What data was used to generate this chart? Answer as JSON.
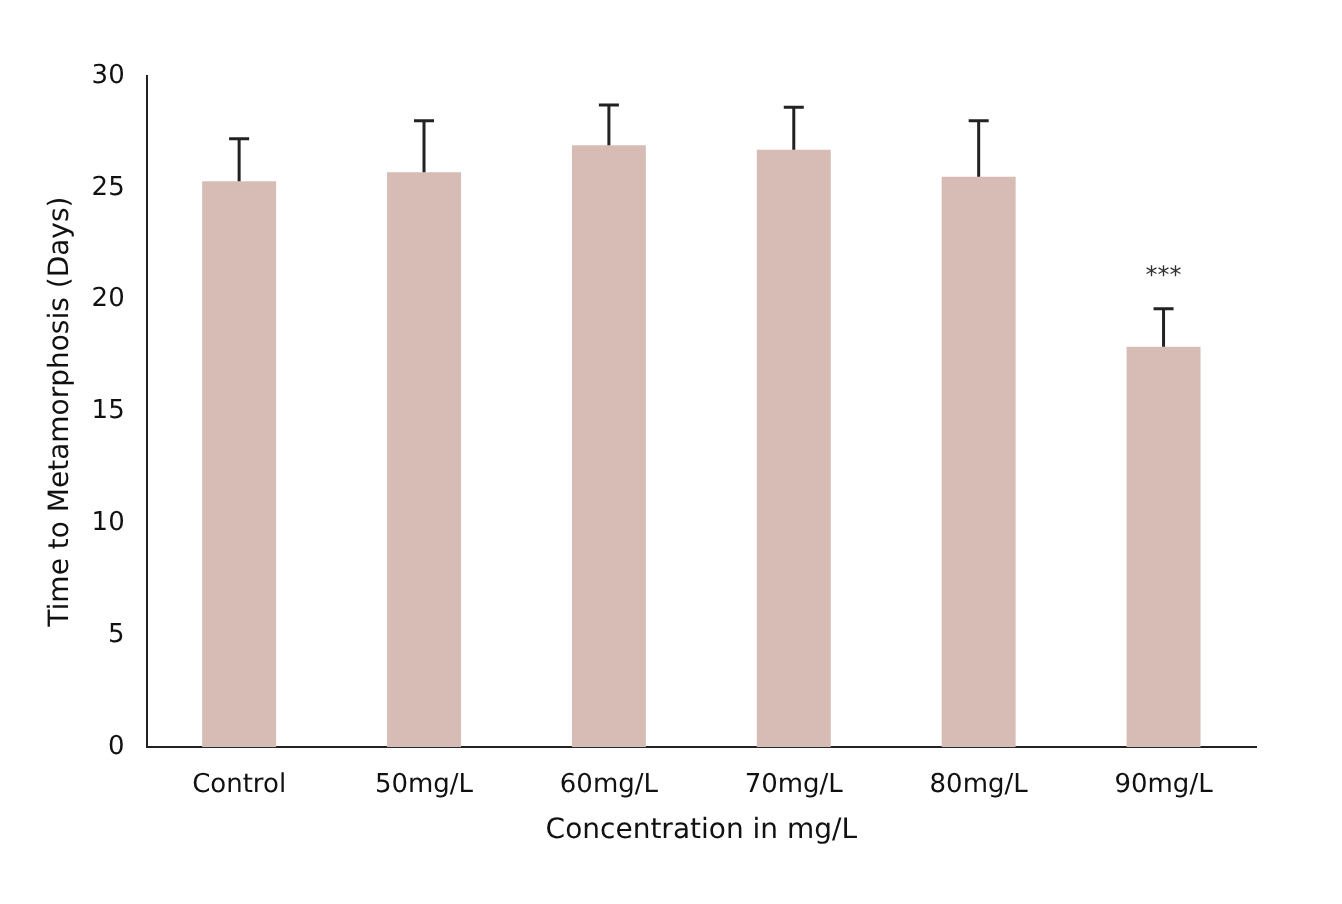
{
  "chart_data": {
    "type": "bar",
    "xlabel": "Concentration in mg/L",
    "ylabel": "Time to Metamorphosis (Days)",
    "categories": [
      "Control",
      "50mg/L",
      "60mg/L",
      "70mg/L",
      "80mg/L",
      "90mg/L"
    ],
    "values": [
      25.3,
      25.7,
      26.9,
      26.7,
      25.5,
      17.9
    ],
    "errors": [
      [
        25.3,
        27.2
      ],
      [
        25.7,
        28.0
      ],
      [
        26.9,
        28.7
      ],
      [
        26.7,
        28.6
      ],
      [
        25.5,
        28.0
      ],
      [
        17.9,
        19.6
      ]
    ],
    "color": "#d6bcb4",
    "ylim": [
      0,
      30
    ],
    "yticks": [
      0,
      5,
      10,
      15,
      20,
      25,
      30
    ],
    "grid": false,
    "legend": false,
    "annotations": [
      {
        "text": "***",
        "x": "90mg/L",
        "y": 19.6
      }
    ]
  }
}
